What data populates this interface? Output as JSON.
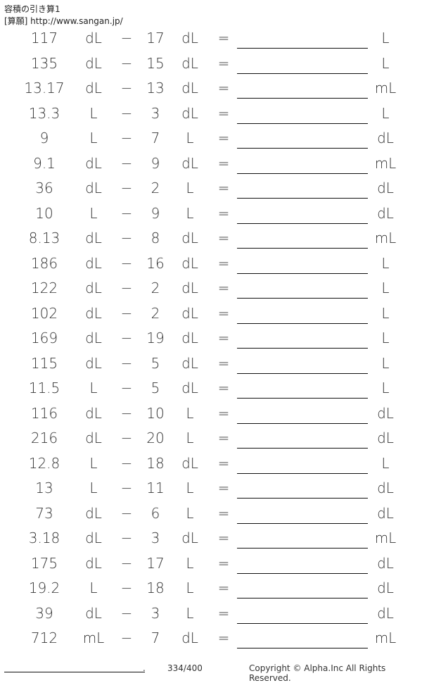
{
  "header": {
    "title": "容積の引き算1",
    "subtitle": "[算願] http://www.sangan.jp/"
  },
  "rows": [
    [
      "117",
      "dL",
      "17",
      "dL",
      "L"
    ],
    [
      "135",
      "dL",
      "15",
      "dL",
      "L"
    ],
    [
      "13.17",
      "dL",
      "13",
      "dL",
      "mL"
    ],
    [
      "13.3",
      "L",
      "3",
      "dL",
      "L"
    ],
    [
      "9",
      "L",
      "7",
      "L",
      "dL"
    ],
    [
      "9.1",
      "dL",
      "9",
      "dL",
      "mL"
    ],
    [
      "36",
      "dL",
      "2",
      "L",
      "dL"
    ],
    [
      "10",
      "L",
      "9",
      "L",
      "dL"
    ],
    [
      "8.13",
      "dL",
      "8",
      "dL",
      "mL"
    ],
    [
      "186",
      "dL",
      "16",
      "dL",
      "L"
    ],
    [
      "122",
      "dL",
      "2",
      "dL",
      "L"
    ],
    [
      "102",
      "dL",
      "2",
      "dL",
      "L"
    ],
    [
      "169",
      "dL",
      "19",
      "dL",
      "L"
    ],
    [
      "115",
      "dL",
      "5",
      "dL",
      "L"
    ],
    [
      "11.5",
      "L",
      "5",
      "dL",
      "L"
    ],
    [
      "116",
      "dL",
      "10",
      "L",
      "dL"
    ],
    [
      "216",
      "dL",
      "20",
      "L",
      "dL"
    ],
    [
      "12.8",
      "L",
      "18",
      "dL",
      "L"
    ],
    [
      "13",
      "L",
      "11",
      "L",
      "dL"
    ],
    [
      "73",
      "dL",
      "6",
      "L",
      "dL"
    ],
    [
      "3.18",
      "dL",
      "3",
      "dL",
      "mL"
    ],
    [
      "175",
      "dL",
      "17",
      "L",
      "dL"
    ],
    [
      "19.2",
      "L",
      "18",
      "L",
      "dL"
    ],
    [
      "39",
      "dL",
      "3",
      "L",
      "dL"
    ],
    [
      "712",
      "mL",
      "7",
      "dL",
      "mL"
    ]
  ],
  "symbols": {
    "minus": "−",
    "equals": "="
  },
  "footer": {
    "dot": ".",
    "page": "334/400",
    "copyright": "Copyright © Alpha.Inc All Rights Reserved."
  }
}
